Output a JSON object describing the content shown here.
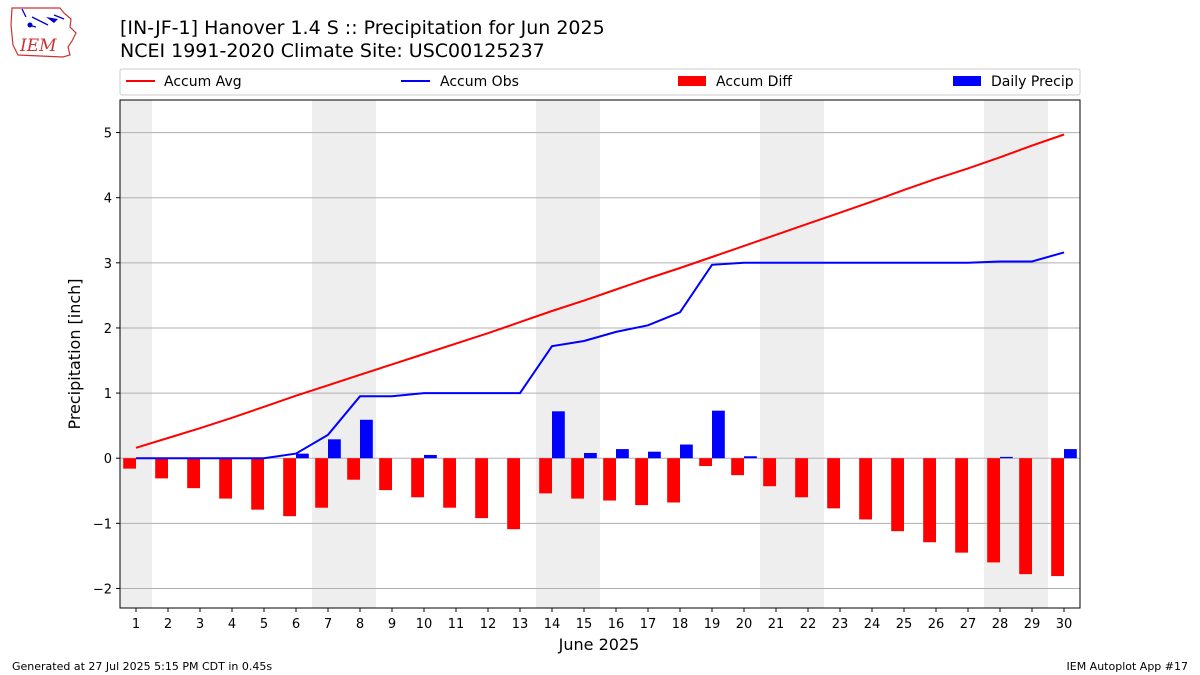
{
  "header": {
    "title_line1": "[IN-JF-1] Hanover 1.4 S :: Precipitation for Jun 2025",
    "title_line2": "NCEI 1991-2020 Climate Site: USC00125237",
    "logo_text": "IEM"
  },
  "footer": {
    "generated": "Generated at 27 Jul 2025 5:15 PM CDT in 0.45s",
    "app": "IEM Autoplot App #17"
  },
  "colors": {
    "accum_avg": "#ff0000",
    "accum_obs": "#0000ff",
    "accum_diff": "#ff0000",
    "daily_precip": "#0000ff",
    "weekend_shade": "#eeeeee",
    "grid": "#b0b0b0"
  },
  "chart_data": {
    "type": "bar",
    "xlabel": "June 2025",
    "ylabel": "Precipitation [inch]",
    "ylim": [
      -2.3,
      5.5
    ],
    "yticks": [
      -2,
      -1,
      0,
      1,
      2,
      3,
      4,
      5
    ],
    "ytick_labels": [
      "−2",
      "−1",
      "0",
      "1",
      "2",
      "3",
      "4",
      "5"
    ],
    "grid": "horizontal",
    "legend_placement": "top",
    "x": [
      1,
      2,
      3,
      4,
      5,
      6,
      7,
      8,
      9,
      10,
      11,
      12,
      13,
      14,
      15,
      16,
      17,
      18,
      19,
      20,
      21,
      22,
      23,
      24,
      25,
      26,
      27,
      28,
      29,
      30
    ],
    "weekend_days": [
      1,
      7,
      8,
      14,
      15,
      21,
      22,
      28,
      29
    ],
    "series": [
      {
        "name": "Accum Avg",
        "kind": "line",
        "values": [
          0.16,
          0.31,
          0.46,
          0.62,
          0.79,
          0.96,
          1.12,
          1.28,
          1.44,
          1.6,
          1.76,
          1.92,
          2.09,
          2.26,
          2.42,
          2.59,
          2.76,
          2.92,
          3.09,
          3.26,
          3.43,
          3.6,
          3.77,
          3.94,
          4.12,
          4.29,
          4.45,
          4.62,
          4.8,
          4.97
        ]
      },
      {
        "name": "Accum Obs",
        "kind": "line",
        "values": [
          0.0,
          0.0,
          0.0,
          0.0,
          0.0,
          0.07,
          0.36,
          0.95,
          0.95,
          1.0,
          1.0,
          1.0,
          1.0,
          1.72,
          1.8,
          1.94,
          2.04,
          2.24,
          2.97,
          3.0,
          3.0,
          3.0,
          3.0,
          3.0,
          3.0,
          3.0,
          3.0,
          3.02,
          3.02,
          3.16
        ]
      },
      {
        "name": "Accum Diff",
        "kind": "bar",
        "values": [
          -0.16,
          -0.31,
          -0.46,
          -0.62,
          -0.79,
          -0.89,
          -0.76,
          -0.33,
          -0.49,
          -0.6,
          -0.76,
          -0.92,
          -1.09,
          -0.54,
          -0.62,
          -0.65,
          -0.72,
          -0.68,
          -0.12,
          -0.26,
          -0.43,
          -0.6,
          -0.77,
          -0.94,
          -1.12,
          -1.29,
          -1.45,
          -1.6,
          -1.78,
          -1.81
        ]
      },
      {
        "name": "Daily Precip",
        "kind": "bar",
        "values": [
          0.0,
          0.0,
          0.0,
          0.0,
          0.0,
          0.07,
          0.29,
          0.59,
          0.0,
          0.05,
          0.0,
          0.0,
          0.0,
          0.72,
          0.08,
          0.14,
          0.1,
          0.21,
          0.73,
          0.03,
          0.0,
          0.0,
          0.0,
          0.0,
          0.0,
          0.0,
          0.0,
          0.02,
          0.0,
          0.14
        ]
      }
    ]
  }
}
